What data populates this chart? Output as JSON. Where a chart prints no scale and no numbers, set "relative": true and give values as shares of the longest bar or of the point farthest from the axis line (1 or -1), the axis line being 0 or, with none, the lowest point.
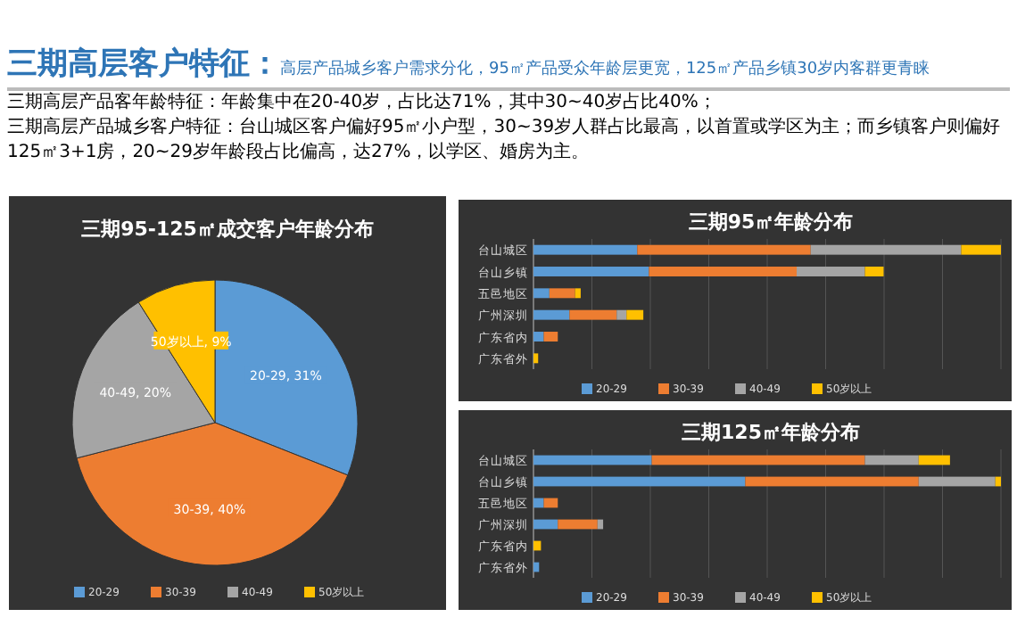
{
  "chart_data": [
    {
      "type": "pie",
      "title": "三期95-125㎡成交客户年龄分布",
      "annotations": [
        "三期高层客户特征：",
        "高层产品城乡客户需求分化，95㎡产品受众年龄层更宽，125㎡产品乡镇30岁内客群更青睐",
        "三期高层产品客年龄特征：年龄集中在20-40岁，占比达71%，其中30~40岁占比40%；",
        "三期高层产品城乡客户特征：台山城区客户偏好95㎡小户型，30~39岁人群占比最高，以首置或学区为主；而乡镇客户则偏好125㎡3+1房，20~29岁年龄段占比偏高，达27%，以学区、婚房为主。"
      ],
      "categories": [
        "20-29",
        "30-39",
        "40-49",
        "50岁以上"
      ],
      "values": [
        31,
        40,
        20,
        9
      ],
      "value_labels": [
        "20-29, 31%",
        "30-39, 40%",
        "40-49, 20%",
        "50岁以上, 9%"
      ],
      "colors": [
        "#5b9bd5",
        "#ed7d31",
        "#a5a5a5",
        "#ffc000"
      ],
      "legend": "bottom"
    },
    {
      "type": "bar",
      "title": "三期95㎡年龄分布",
      "orientation": "horizontal",
      "stacked": true,
      "relative": true,
      "grid": "x",
      "legend": "bottom",
      "categories": [
        "台山城区",
        "台山乡镇",
        "五邑地区",
        "广州深圳",
        "广东省内",
        "广东省外"
      ],
      "series": [
        {
          "name": "20-29",
          "color": "#5b9bd5",
          "values": [
            0.222,
            0.247,
            0.034,
            0.077,
            0.022,
            0
          ]
        },
        {
          "name": "30-39",
          "color": "#ed7d31",
          "values": [
            0.371,
            0.316,
            0.055,
            0.101,
            0.03,
            0
          ]
        },
        {
          "name": "40-49",
          "color": "#a5a5a5",
          "values": [
            0.322,
            0.146,
            0,
            0.021,
            0,
            0
          ]
        },
        {
          "name": "50岁以上",
          "color": "#ffc000",
          "values": [
            0.085,
            0.04,
            0.012,
            0.036,
            0,
            0.01
          ]
        }
      ]
    },
    {
      "type": "bar",
      "title": "三期125㎡年龄分布",
      "orientation": "horizontal",
      "stacked": true,
      "relative": true,
      "grid": "x",
      "legend": "bottom",
      "categories": [
        "台山城区",
        "台山乡镇",
        "五邑地区",
        "广州深圳",
        "广东省内",
        "广东省外"
      ],
      "series": [
        {
          "name": "20-29",
          "color": "#5b9bd5",
          "values": [
            0.253,
            0.453,
            0.022,
            0.052,
            0,
            0.012
          ]
        },
        {
          "name": "30-39",
          "color": "#ed7d31",
          "values": [
            0.456,
            0.371,
            0.03,
            0.085,
            0,
            0
          ]
        },
        {
          "name": "40-49",
          "color": "#a5a5a5",
          "values": [
            0.115,
            0.164,
            0,
            0.012,
            0,
            0
          ]
        },
        {
          "name": "50岁以上",
          "color": "#ffc000",
          "values": [
            0.067,
            0.012,
            0,
            0,
            0.016,
            0
          ]
        }
      ]
    }
  ]
}
